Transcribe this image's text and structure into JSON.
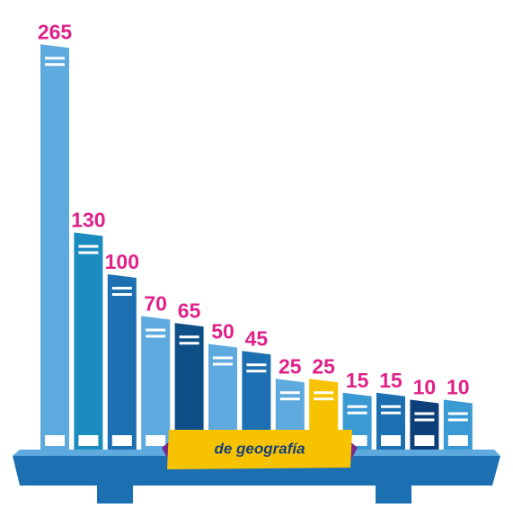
{
  "chart_data": {
    "type": "bar",
    "annotation": "de geografía",
    "values": [
      265,
      130,
      100,
      70,
      65,
      50,
      45,
      25,
      25,
      15,
      15,
      10,
      10
    ],
    "colors": [
      "#5eaadf",
      "#1b8cc0",
      "#1c70b2",
      "#5eaadf",
      "#0d4f86",
      "#5eaadf",
      "#1c70b2",
      "#5eaadf",
      "#f7c200",
      "#3a9ad4",
      "#1c70b2",
      "#0d3f7a",
      "#3a9ad4"
    ],
    "label_color": "#e0218a"
  }
}
